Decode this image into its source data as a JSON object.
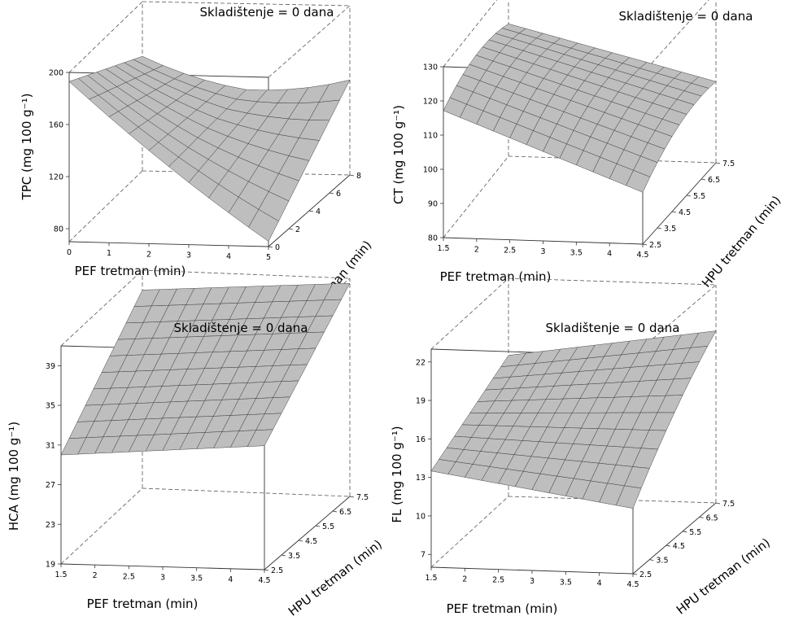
{
  "figure": {
    "colors": {
      "surface": "#bebebe",
      "mesh": "#333333",
      "frame": "#333333",
      "background": "#ffffff"
    }
  },
  "chart_data": [
    {
      "type": "surface3d",
      "title": "Skladištenje = 0 dana",
      "xlabel": "PEF tretman (min)",
      "ylabel": "HPU tretman (min)",
      "zlabel": "TPC (mg 100 g⁻¹)",
      "xticks": [
        "0",
        "1",
        "2",
        "3",
        "4",
        "5"
      ],
      "yticks": [
        "0",
        "2",
        "4",
        "6",
        "8"
      ],
      "zticks": [
        "80",
        "120",
        "160",
        "200"
      ],
      "xlim": [
        0,
        5
      ],
      "ylim": [
        0,
        8
      ],
      "zlim": [
        70,
        200
      ],
      "grid": "x 0–5 step 0.5, y 0–8 step 1",
      "corners_z": {
        "x0_y0": 193,
        "x5_y0": 74,
        "x0_y8": 158,
        "x5_y8": 134,
        "xmid_y0": 142,
        "xmid_y8": 148,
        "x0_ymid": 172,
        "x5_ymid": 112
      }
    },
    {
      "type": "surface3d",
      "title": "Skladištenje = 0 dana",
      "xlabel": "PEF tretman (min)",
      "ylabel": "HPU tretman (min)",
      "zlabel": "CT (mg 100 g⁻¹)",
      "xticks": [
        "1.5",
        "2",
        "2.5",
        "3",
        "3.5",
        "4",
        "4.5"
      ],
      "yticks": [
        "2.5",
        "3.5",
        "4.5",
        "5.5",
        "6.5",
        "7.5"
      ],
      "zticks": [
        "80",
        "90",
        "100",
        "110",
        "120",
        "130"
      ],
      "xlim": [
        1.5,
        4.5
      ],
      "ylim": [
        2.5,
        7.5
      ],
      "zlim": [
        80,
        130
      ],
      "grid": "x 1.5–4.5 step 0.25, y 2.5–7.5 step 0.5",
      "corners_z": {
        "x1.5_y2.5": 117,
        "x4.5_y2.5": 92,
        "x1.5_y7.5": 120,
        "x4.5_y7.5": 107,
        "peak_y_center": 125
      }
    },
    {
      "type": "surface3d",
      "title": "Skladištenje = 0 dana",
      "xlabel": "PEF tretman (min)",
      "ylabel": "HPU tretman (min)",
      "zlabel": "HCA (mg 100 g⁻¹)",
      "xticks": [
        "1.5",
        "2",
        "2.5",
        "3",
        "3.5",
        "4",
        "4.5"
      ],
      "yticks": [
        "2.5",
        "3.5",
        "4.5",
        "5.5",
        "6.5",
        "7.5"
      ],
      "zticks": [
        "19",
        "23",
        "27",
        "31",
        "35",
        "39"
      ],
      "xlim": [
        1.5,
        4.5
      ],
      "ylim": [
        2.5,
        7.5
      ],
      "zlim": [
        19,
        41
      ],
      "grid": "x 1.5–4.5 step 0.25, y 2.5–7.5 step 0.5",
      "corners_z": {
        "x1.5_y2.5": 30,
        "x4.5_y2.5": 31.5,
        "x1.5_y7.5": 39,
        "x4.5_y7.5": 40.5
      }
    },
    {
      "type": "surface3d",
      "title": "Skladištenje = 0 dana",
      "xlabel": "PEF tretman (min)",
      "ylabel": "HPU tretman (min)",
      "zlabel": "FL (mg 100 g⁻¹)",
      "xticks": [
        "1.5",
        "2",
        "2.5",
        "3",
        "3.5",
        "4",
        "4.5"
      ],
      "yticks": [
        "2.5",
        "3.5",
        "4.5",
        "5.5",
        "6.5",
        "7.5"
      ],
      "zticks": [
        "7",
        "10",
        "13",
        "16",
        "19",
        "22"
      ],
      "xlim": [
        1.5,
        4.5
      ],
      "ylim": [
        2.5,
        7.5
      ],
      "zlim": [
        6,
        23
      ],
      "grid": "x 1.5–4.5 step 0.25, y 2.5–7.5 step 0.5",
      "corners_z": {
        "x1.5_y2.5": 13.5,
        "x4.5_y2.5": 12.5,
        "x1.5_y7.5": 16.8,
        "x4.5_y7.5": 19.5,
        "max_near_y": 6.5
      }
    }
  ]
}
